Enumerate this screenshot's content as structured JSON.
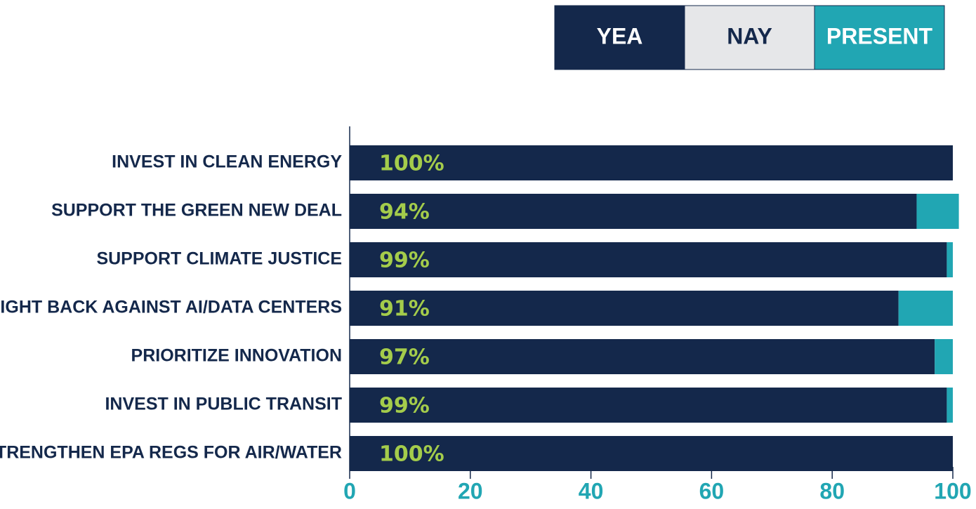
{
  "chart_data": {
    "type": "stacked_barh",
    "categories": [
      "INVEST IN CLEAN ENERGY",
      "SUPPORT THE GREEN NEW DEAL",
      "SUPPORT CLIMATE JUSTICE",
      "FIGHT BACK AGAINST AI/DATA CENTERS",
      "PRIORITIZE INNOVATION",
      "INVEST IN PUBLIC TRANSIT",
      "STRENGTHEN EPA REGS FOR AIR/WATER"
    ],
    "series": [
      {
        "name": "YEA",
        "color": "#14284b",
        "values": [
          100,
          94,
          99,
          91,
          97,
          99,
          100
        ],
        "value_labels": [
          "100%",
          "94%",
          "99%",
          "91%",
          "97%",
          "99%",
          "100%"
        ]
      },
      {
        "name": "NAY",
        "color": "#e6e7e9",
        "values": [
          0,
          0,
          0,
          0,
          0,
          0,
          0
        ]
      },
      {
        "name": "PRESENT",
        "color": "#21a6b3",
        "values": [
          0,
          7,
          1,
          9,
          3,
          1,
          0
        ]
      }
    ],
    "xlim": [
      0,
      100
    ],
    "xticks": [
      0,
      20,
      40,
      60,
      80,
      100
    ]
  }
}
